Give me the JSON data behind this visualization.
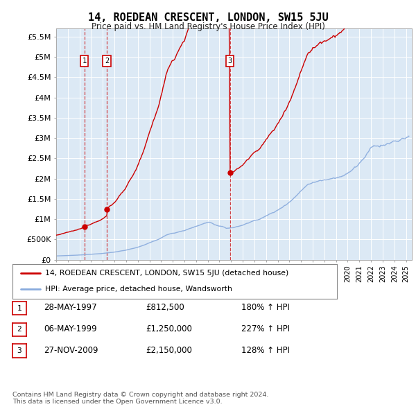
{
  "title": "14, ROEDEAN CRESCENT, LONDON, SW15 5JU",
  "subtitle": "Price paid vs. HM Land Registry's House Price Index (HPI)",
  "ylabel_ticks": [
    "£0",
    "£500K",
    "£1M",
    "£1.5M",
    "£2M",
    "£2.5M",
    "£3M",
    "£3.5M",
    "£4M",
    "£4.5M",
    "£5M",
    "£5.5M"
  ],
  "ylabel_values": [
    0,
    500000,
    1000000,
    1500000,
    2000000,
    2500000,
    3000000,
    3500000,
    4000000,
    4500000,
    5000000,
    5500000
  ],
  "ylim": [
    0,
    5700000
  ],
  "xlim_start": 1995.0,
  "xlim_end": 2025.5,
  "price_paid_color": "#cc0000",
  "hpi_color": "#88aadd",
  "background_color": "#dce9f5",
  "transactions": [
    {
      "date": 1997.41,
      "price": 812500,
      "label": "1"
    },
    {
      "date": 1999.34,
      "price": 1250000,
      "label": "2"
    },
    {
      "date": 2009.9,
      "price": 2150000,
      "label": "3"
    }
  ],
  "transaction_vline_color": "#cc0000",
  "transaction_box_color": "#cc0000",
  "legend_items": [
    "14, ROEDEAN CRESCENT, LONDON, SW15 5JU (detached house)",
    "HPI: Average price, detached house, Wandsworth"
  ],
  "table_rows": [
    {
      "num": "1",
      "date": "28-MAY-1997",
      "price": "£812,500",
      "change": "180% ↑ HPI"
    },
    {
      "num": "2",
      "date": "06-MAY-1999",
      "price": "£1,250,000",
      "change": "227% ↑ HPI"
    },
    {
      "num": "3",
      "date": "27-NOV-2009",
      "price": "£2,150,000",
      "change": "128% ↑ HPI"
    }
  ],
  "footer": "Contains HM Land Registry data © Crown copyright and database right 2024.\nThis data is licensed under the Open Government Licence v3.0."
}
